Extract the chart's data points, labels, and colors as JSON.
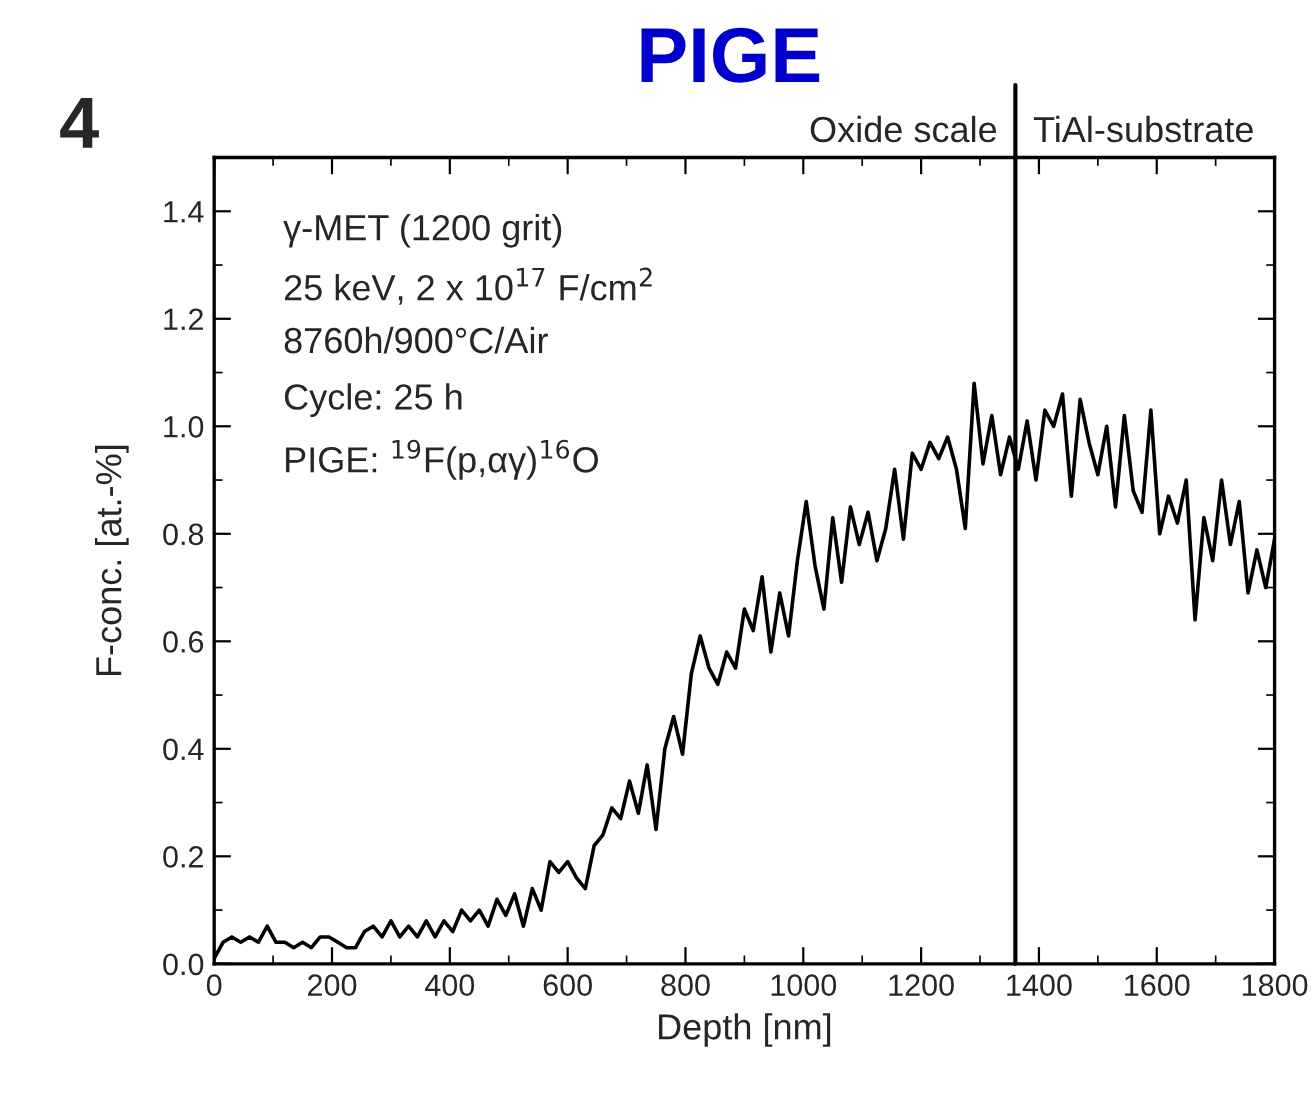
{
  "chart_data": {
    "type": "line",
    "title": "PIGE",
    "xlabel": "Depth [nm]",
    "ylabel": "F-conc. [at.-%]",
    "annotations": [
      "4",
      "Oxide scale",
      "TiAl-substrate",
      "γ-MET (1200 grit)",
      "25 keV, 2 x 10$^{17}$ F/cm$^{2}$",
      "8760h/900°C/Air",
      "Cycle: 25 h",
      "PIGE: $^{19}$F(p,αγ)$^{16}$O"
    ],
    "x": [
      0,
      15,
      30,
      45,
      60,
      75,
      90,
      105,
      120,
      135,
      150,
      165,
      180,
      195,
      210,
      225,
      240,
      255,
      270,
      285,
      300,
      315,
      330,
      345,
      360,
      375,
      390,
      405,
      420,
      435,
      450,
      465,
      480,
      495,
      510,
      525,
      540,
      555,
      570,
      585,
      600,
      615,
      630,
      645,
      660,
      675,
      690,
      705,
      720,
      735,
      750,
      765,
      780,
      795,
      810,
      825,
      840,
      855,
      870,
      885,
      900,
      915,
      930,
      945,
      960,
      975,
      990,
      1005,
      1020,
      1035,
      1050,
      1065,
      1080,
      1095,
      1110,
      1125,
      1140,
      1155,
      1170,
      1185,
      1200,
      1215,
      1230,
      1245,
      1260,
      1275,
      1290,
      1305,
      1320,
      1335,
      1350,
      1365,
      1380,
      1395,
      1410,
      1425,
      1440,
      1455,
      1470,
      1485,
      1500,
      1515,
      1530,
      1545,
      1560,
      1575,
      1590,
      1605,
      1620,
      1635,
      1650,
      1665,
      1680,
      1695,
      1710,
      1725,
      1740,
      1755,
      1770,
      1785,
      1800
    ],
    "series": [
      {
        "color": "#000000",
        "values": [
          0.01,
          0.04,
          0.05,
          0.04,
          0.05,
          0.04,
          0.07,
          0.04,
          0.04,
          0.03,
          0.04,
          0.03,
          0.05,
          0.05,
          0.04,
          0.03,
          0.03,
          0.06,
          0.07,
          0.05,
          0.08,
          0.05,
          0.07,
          0.05,
          0.08,
          0.05,
          0.08,
          0.06,
          0.1,
          0.08,
          0.1,
          0.07,
          0.12,
          0.09,
          0.13,
          0.07,
          0.14,
          0.1,
          0.19,
          0.17,
          0.19,
          0.16,
          0.14,
          0.22,
          0.24,
          0.29,
          0.27,
          0.34,
          0.28,
          0.37,
          0.25,
          0.4,
          0.46,
          0.39,
          0.54,
          0.61,
          0.55,
          0.52,
          0.58,
          0.55,
          0.66,
          0.62,
          0.72,
          0.58,
          0.69,
          0.61,
          0.75,
          0.86,
          0.74,
          0.66,
          0.83,
          0.71,
          0.85,
          0.78,
          0.84,
          0.75,
          0.81,
          0.92,
          0.79,
          0.95,
          0.92,
          0.97,
          0.94,
          0.98,
          0.92,
          0.81,
          1.08,
          0.93,
          1.02,
          0.91,
          0.98,
          0.92,
          1.01,
          0.9,
          1.03,
          1.0,
          1.06,
          0.87,
          1.05,
          0.97,
          0.91,
          1.0,
          0.85,
          1.02,
          0.88,
          0.84,
          1.03,
          0.8,
          0.87,
          0.82,
          0.9,
          0.64,
          0.83,
          0.75,
          0.9,
          0.78,
          0.86,
          0.69,
          0.77,
          0.7,
          0.79
        ]
      }
    ],
    "xlim": [
      0,
      1800
    ],
    "xticks": [
      0,
      200,
      400,
      600,
      800,
      1000,
      1200,
      1400,
      1600,
      1800
    ],
    "ylim": [
      0,
      1.5
    ],
    "yticks": [
      {
        "value": 0,
        "label": "0.0"
      },
      0.2,
      0.4,
      0.6,
      0.8,
      {
        "value": 1,
        "label": "1.0"
      },
      1.2,
      1.4
    ],
    "ref_lines": [
      {
        "axis": "x",
        "value": 1360,
        "color": "#000000"
      }
    ],
    "grid": false,
    "legend": false,
    "marker": "none",
    "line_style": "solid"
  }
}
